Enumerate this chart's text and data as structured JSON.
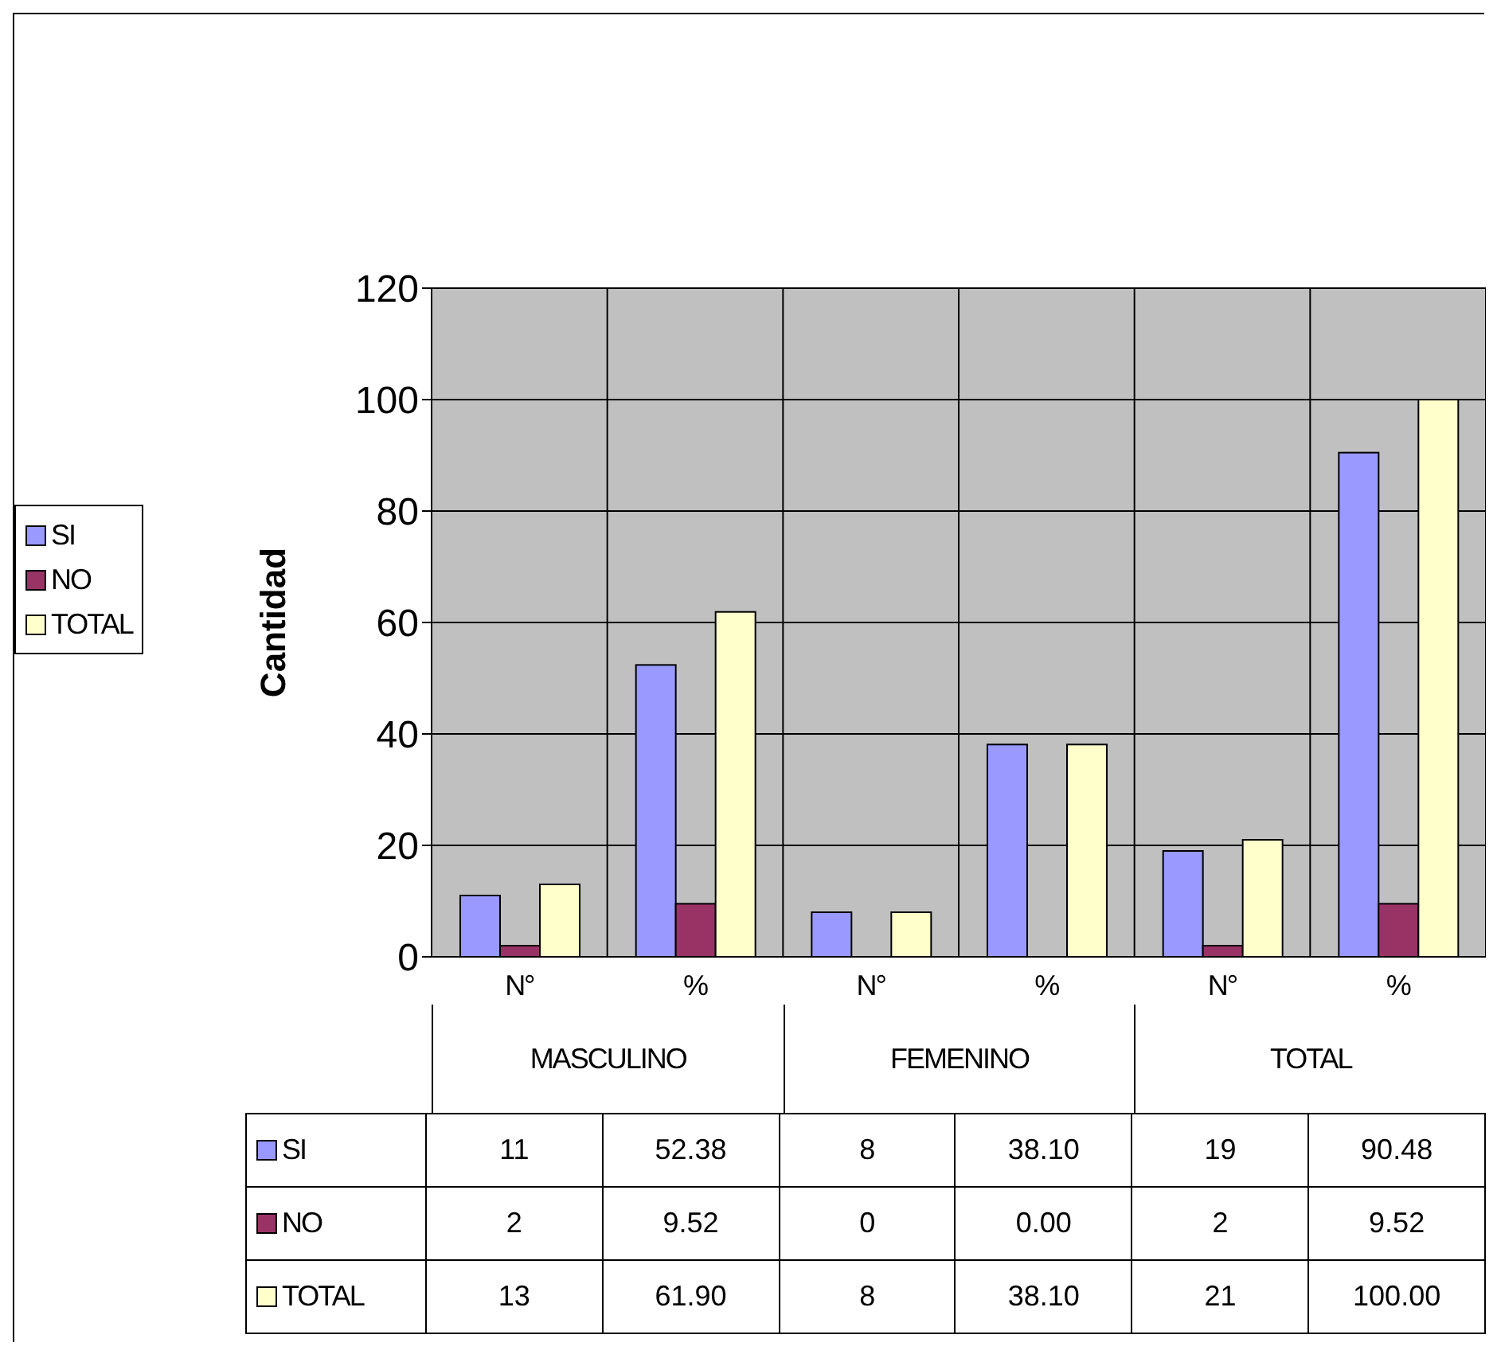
{
  "chart_data": {
    "type": "bar",
    "ylabel": "Cantidad",
    "categories": [
      "N°",
      "%",
      "N°",
      "%",
      "N°",
      "%"
    ],
    "annotations": [
      "MASCULINO",
      "FEMENINO",
      "TOTAL"
    ],
    "series": [
      {
        "name": "SI",
        "color": "#9999ff",
        "values": [
          11,
          52.38,
          8,
          38.1,
          19,
          90.48
        ],
        "value_labels": [
          "11",
          "52.38",
          "8",
          "38.10",
          "19",
          "90.48"
        ]
      },
      {
        "name": "NO",
        "color": "#993366",
        "values": [
          2,
          9.52,
          0,
          0,
          2,
          9.52
        ],
        "value_labels": [
          "2",
          "9.52",
          "0",
          "0.00",
          "2",
          "9.52"
        ]
      },
      {
        "name": "TOTAL",
        "color": "#ffffcc",
        "values": [
          13,
          61.9,
          8,
          38.1,
          21,
          100
        ],
        "value_labels": [
          "13",
          "61.90",
          "8",
          "38.10",
          "21",
          "100.00"
        ]
      }
    ],
    "ylim": [
      0,
      120
    ],
    "yticks": [
      0,
      20,
      40,
      60,
      80,
      100,
      120
    ],
    "grid": true,
    "legend": "left"
  }
}
